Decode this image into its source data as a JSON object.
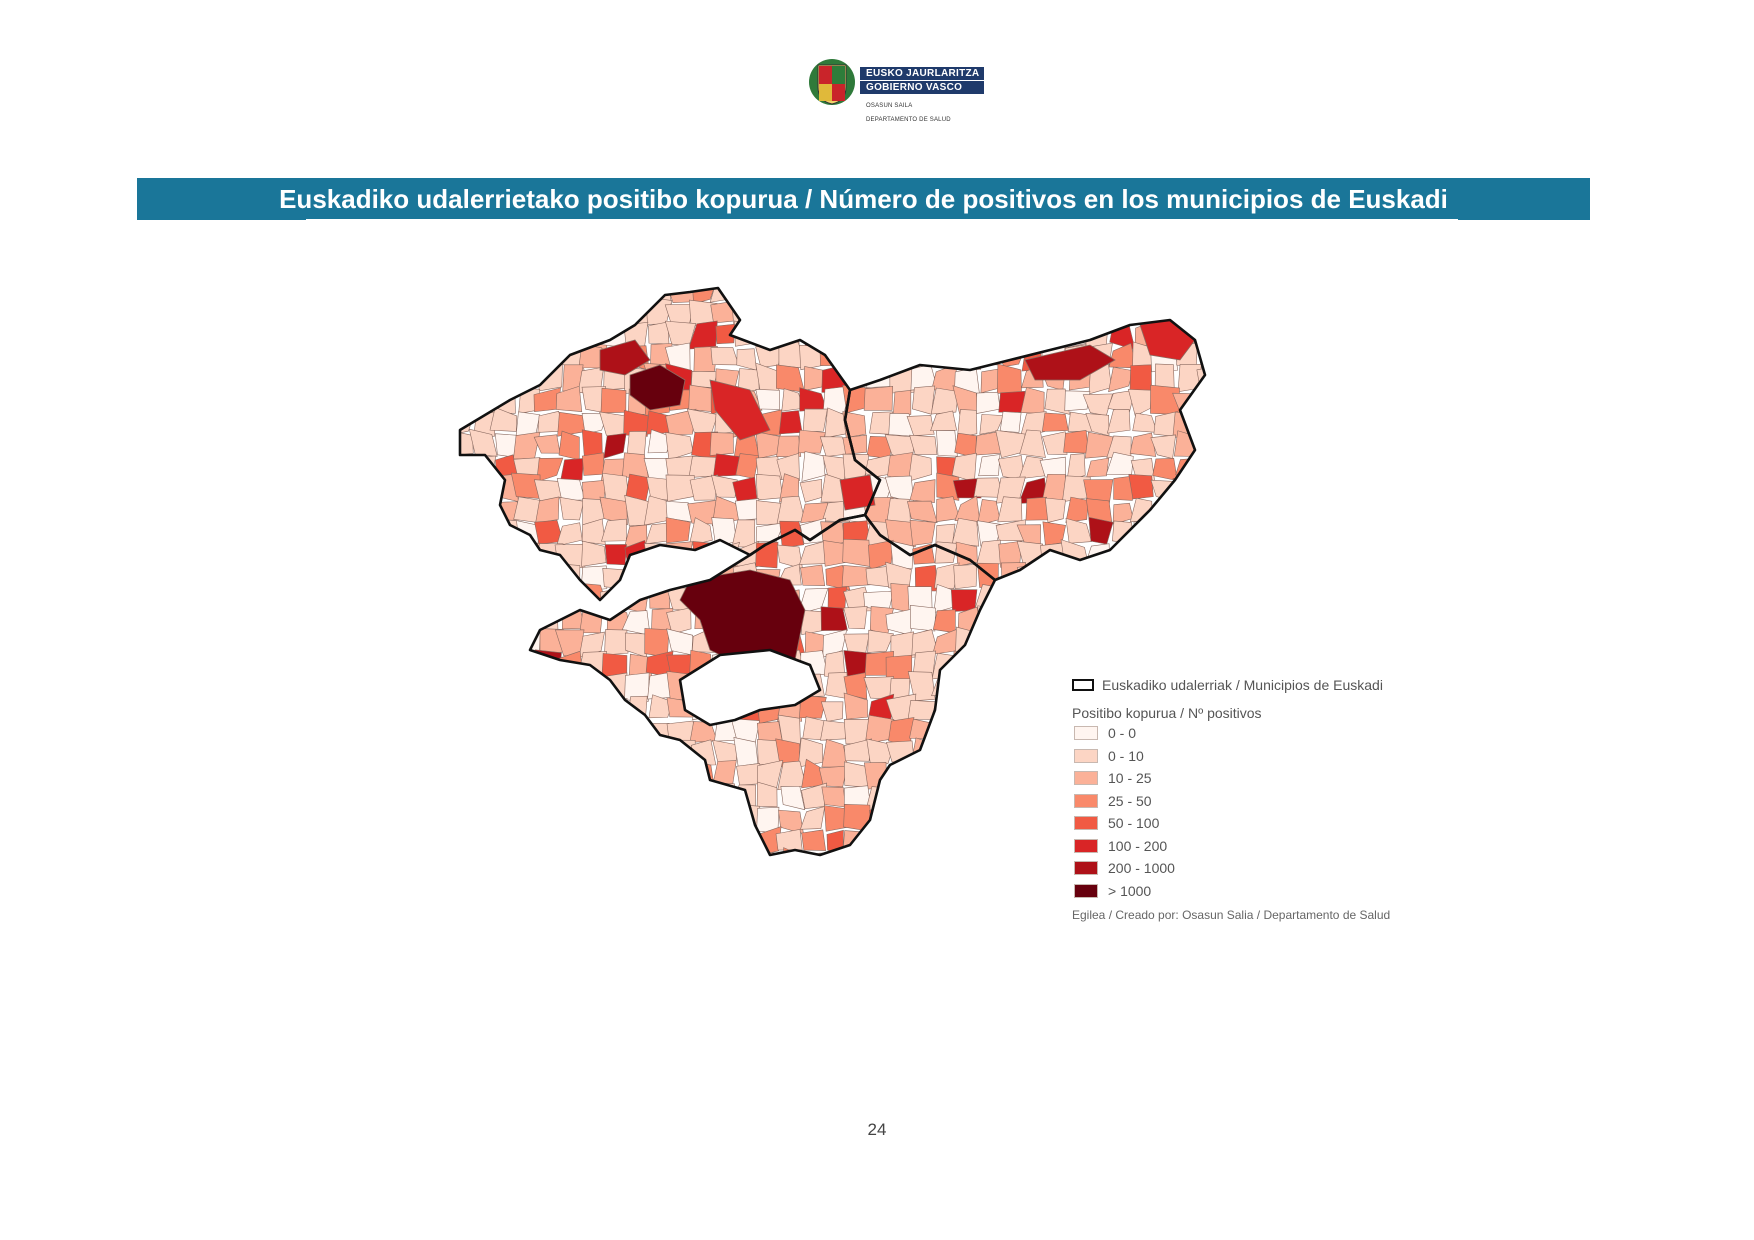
{
  "header": {
    "logo_line1": "EUSKO JAURLARITZA",
    "logo_line2": "GOBIERNO VASCO",
    "logo_sub1": "OSASUN SAILA",
    "logo_sub2": "DEPARTAMENTO DE SALUD"
  },
  "title": "Euskadiko udalerrietako positibo kopurua / Número de positivos en los municipios de Euskadi",
  "legend": {
    "boundary_label": "Euskadiko udalerriak / Municipios de Euskadi",
    "heading": "Positibo kopurua / Nº positivos",
    "classes": [
      {
        "label": "0 - 0",
        "color": "#fff5f0"
      },
      {
        "label": "0 - 10",
        "color": "#fcd5c4"
      },
      {
        "label": "10 - 25",
        "color": "#fbb198"
      },
      {
        "label": "25 - 50",
        "color": "#f9896a"
      },
      {
        "label": "50 - 100",
        "color": "#f15a43"
      },
      {
        "label": "100 - 200",
        "color": "#d92526"
      },
      {
        "label": "200 - 1000",
        "color": "#ae1118"
      },
      {
        "label": "> 1000",
        "color": "#67000d"
      }
    ],
    "credit": "Egilea / Creado por: Osasun Salia / Departamento de Salud"
  },
  "colors": {
    "title_bar": "#1a7699",
    "boundary": "#111111",
    "municipality_line": "#8a6a60"
  },
  "page_number": "24"
}
